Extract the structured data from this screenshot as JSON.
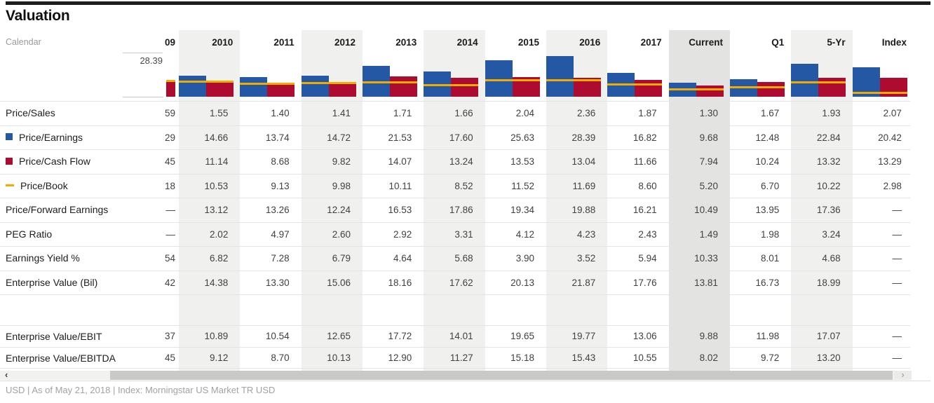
{
  "title": "Valuation",
  "calendar_label": "Calendar",
  "footer": "USD | As of May 21, 2018 | Index: Morningstar US Market TR USD",
  "colors": {
    "pe_blue": "#2458a5",
    "pcf_red": "#ae0b31",
    "pb_yellow": "#f0ac00",
    "band_light": "#f0f0ef",
    "band_dark": "#e3e3e2",
    "accent_rule": "#1e1e1e"
  },
  "columns": [
    {
      "label": "09",
      "band": "none"
    },
    {
      "label": "2010",
      "band": "light"
    },
    {
      "label": "2011",
      "band": "none"
    },
    {
      "label": "2012",
      "band": "light"
    },
    {
      "label": "2013",
      "band": "none"
    },
    {
      "label": "2014",
      "band": "light"
    },
    {
      "label": "2015",
      "band": "none"
    },
    {
      "label": "2016",
      "band": "light"
    },
    {
      "label": "2017",
      "band": "none"
    },
    {
      "label": "Current",
      "band": "dark"
    },
    {
      "label": "Q1",
      "band": "none"
    },
    {
      "label": "5-Yr",
      "band": "light"
    },
    {
      "label": "Index",
      "band": "none"
    }
  ],
  "chart_data": {
    "type": "bar",
    "title": "Valuation mini chart",
    "categories": [
      "2010",
      "2011",
      "2012",
      "2013",
      "2014",
      "2015",
      "2016",
      "2017",
      "Current",
      "Q1",
      "5-Yr",
      "Index"
    ],
    "series": [
      {
        "name": "Price/Earnings",
        "style": "bar",
        "color": "#2458a5",
        "values": [
          14.66,
          13.74,
          14.72,
          21.53,
          17.6,
          25.63,
          28.39,
          16.82,
          9.68,
          12.48,
          22.84,
          20.42
        ]
      },
      {
        "name": "Price/Cash Flow",
        "style": "bar",
        "color": "#ae0b31",
        "values": [
          11.14,
          8.68,
          9.82,
          14.07,
          13.24,
          13.53,
          13.04,
          11.66,
          7.94,
          10.24,
          13.32,
          13.29
        ]
      },
      {
        "name": "Price/Book",
        "style": "line",
        "color": "#f0ac00",
        "values": [
          10.53,
          9.13,
          9.98,
          10.11,
          8.52,
          11.52,
          11.69,
          8.6,
          5.2,
          6.7,
          10.22,
          2.98
        ]
      }
    ],
    "clipped_column_09": {
      "category": "09",
      "pcf_visible": 10.4,
      "pb_visible": 11.3
    },
    "axis_max_label": "28.39",
    "ylim": [
      0,
      28.39
    ],
    "legend_position": "left-row-labels",
    "grid": "baseline-and-max-only"
  },
  "rows": [
    {
      "label": "Price/Sales",
      "legend": "none",
      "values": [
        "59",
        "1.55",
        "1.40",
        "1.41",
        "1.71",
        "1.66",
        "2.04",
        "2.36",
        "1.87",
        "1.30",
        "1.67",
        "1.93",
        "2.07"
      ]
    },
    {
      "label": "Price/Earnings",
      "legend": "blue-square",
      "values": [
        "29",
        "14.66",
        "13.74",
        "14.72",
        "21.53",
        "17.60",
        "25.63",
        "28.39",
        "16.82",
        "9.68",
        "12.48",
        "22.84",
        "20.42"
      ]
    },
    {
      "label": "Price/Cash Flow",
      "legend": "red-square",
      "values": [
        "45",
        "11.14",
        "8.68",
        "9.82",
        "14.07",
        "13.24",
        "13.53",
        "13.04",
        "11.66",
        "7.94",
        "10.24",
        "13.32",
        "13.29"
      ]
    },
    {
      "label": "Price/Book",
      "legend": "yellow-dash",
      "values": [
        "18",
        "10.53",
        "9.13",
        "9.98",
        "10.11",
        "8.52",
        "11.52",
        "11.69",
        "8.60",
        "5.20",
        "6.70",
        "10.22",
        "2.98"
      ]
    },
    {
      "label": "Price/Forward Earnings",
      "legend": "none",
      "values": [
        "—",
        "13.12",
        "13.26",
        "12.24",
        "16.53",
        "17.86",
        "19.34",
        "19.88",
        "16.21",
        "10.49",
        "13.95",
        "17.36",
        "—"
      ]
    },
    {
      "label": "PEG Ratio",
      "legend": "none",
      "values": [
        "—",
        "2.02",
        "4.97",
        "2.60",
        "2.92",
        "3.31",
        "4.12",
        "4.23",
        "2.43",
        "1.49",
        "1.98",
        "3.24",
        "—"
      ]
    },
    {
      "label": "Earnings Yield %",
      "legend": "none",
      "values": [
        "54",
        "6.82",
        "7.28",
        "6.79",
        "4.64",
        "5.68",
        "3.90",
        "3.52",
        "5.94",
        "10.33",
        "8.01",
        "4.68",
        "—"
      ]
    },
    {
      "label": "Enterprise Value (Bil)",
      "legend": "none",
      "values": [
        "42",
        "14.38",
        "13.30",
        "15.06",
        "18.16",
        "17.62",
        "20.13",
        "21.87",
        "17.76",
        "13.81",
        "16.73",
        "18.99",
        "—"
      ]
    },
    {
      "type": "spacer"
    },
    {
      "label": "Enterprise Value/EBIT",
      "legend": "none",
      "short": true,
      "values": [
        "37",
        "10.89",
        "10.54",
        "12.65",
        "17.72",
        "14.01",
        "19.65",
        "19.77",
        "13.06",
        "9.88",
        "11.98",
        "17.07",
        "—"
      ]
    },
    {
      "label": "Enterprise Value/EBITDA",
      "legend": "none",
      "short": true,
      "last": true,
      "values": [
        "45",
        "9.12",
        "8.70",
        "10.13",
        "12.90",
        "11.27",
        "15.18",
        "15.43",
        "10.55",
        "8.02",
        "9.72",
        "13.20",
        "—"
      ]
    }
  ],
  "scrollbar": {
    "left_arrow_glyph": "‹",
    "right_arrow_glyph": "›"
  }
}
